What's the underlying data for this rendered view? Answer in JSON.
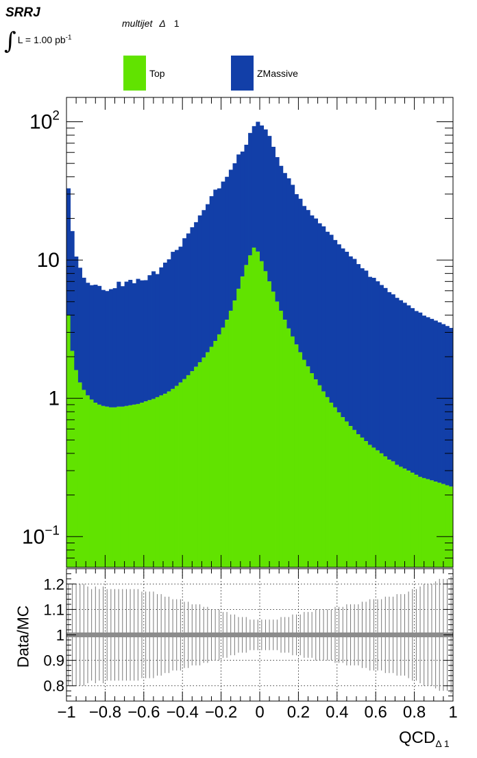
{
  "labels": {
    "analysis": "SRRJ",
    "lumi_text": "L = 1.00 pb",
    "lumi_exp": "-1",
    "region_text": "multijet",
    "region_symbol": "Δ",
    "region_number": "1"
  },
  "legend": [
    {
      "label": "Top",
      "color": "#61e300"
    },
    {
      "label": "ZMassive",
      "color": "#123fa8"
    }
  ],
  "chart_data": [
    {
      "type": "area",
      "subtype": "stacked-histogram",
      "yscale": "log",
      "xlim": [
        -1,
        1
      ],
      "ylim": [
        0.06,
        150
      ],
      "nbins": 100,
      "ytick_labels": [
        "10^-1",
        "1",
        "10",
        "10^2"
      ],
      "series": [
        {
          "name": "Top",
          "color": "#61e300",
          "values": [
            4.0,
            2.2,
            1.6,
            1.3,
            1.15,
            1.05,
            0.98,
            0.93,
            0.9,
            0.88,
            0.87,
            0.86,
            0.86,
            0.87,
            0.87,
            0.88,
            0.89,
            0.9,
            0.91,
            0.93,
            0.95,
            0.97,
            0.99,
            1.02,
            1.05,
            1.08,
            1.12,
            1.17,
            1.23,
            1.3,
            1.38,
            1.47,
            1.57,
            1.69,
            1.82,
            1.97,
            2.15,
            2.36,
            2.6,
            2.9,
            3.25,
            3.7,
            4.3,
            5.1,
            6.2,
            7.6,
            9.2,
            10.8,
            12.3,
            11.5,
            9.8,
            8.3,
            7.0,
            5.9,
            5.0,
            4.3,
            3.7,
            3.2,
            2.8,
            2.45,
            2.15,
            1.9,
            1.7,
            1.52,
            1.37,
            1.24,
            1.12,
            1.02,
            0.93,
            0.86,
            0.79,
            0.73,
            0.68,
            0.63,
            0.59,
            0.55,
            0.52,
            0.49,
            0.46,
            0.44,
            0.42,
            0.4,
            0.38,
            0.36,
            0.35,
            0.33,
            0.32,
            0.31,
            0.3,
            0.29,
            0.28,
            0.27,
            0.265,
            0.26,
            0.255,
            0.25,
            0.245,
            0.24,
            0.235,
            0.23
          ]
        },
        {
          "name": "ZMassive",
          "color": "#123fa8",
          "values": [
            29.0,
            14.0,
            9.0,
            7.5,
            6.3,
            5.8,
            5.6,
            5.7,
            5.6,
            5.2,
            5.1,
            5.3,
            5.4,
            6.1,
            5.6,
            6.1,
            6.3,
            5.9,
            6.4,
            6.2,
            6.2,
            6.8,
            7.3,
            6.9,
            7.8,
            8.5,
            9.0,
            10.3,
            10.6,
            11.2,
            13.0,
            14.1,
            15.7,
            17.1,
            19.2,
            21.0,
            23.2,
            26.6,
            29.7,
            30.1,
            33.7,
            36.3,
            40.7,
            45.0,
            51.8,
            53.3,
            59.0,
            72.2,
            80.7,
            88.5,
            84.2,
            79.7,
            72.0,
            60.0,
            50.5,
            43.7,
            38.9,
            35.8,
            32.2,
            27.5,
            25.6,
            22.7,
            21.3,
            19.5,
            18.6,
            17.2,
            16.4,
            15.0,
            14.3,
            13.1,
            12.2,
            11.4,
            10.8,
            10.0,
            9.6,
            8.8,
            8.2,
            7.9,
            7.1,
            7.0,
            6.6,
            6.2,
            5.9,
            5.5,
            5.3,
            5.0,
            4.8,
            4.6,
            4.4,
            4.2,
            4.0,
            3.9,
            3.7,
            3.6,
            3.5,
            3.4,
            3.3,
            3.2,
            3.1,
            3.0
          ]
        }
      ]
    },
    {
      "type": "scatter",
      "subtype": "ratio-error-bars",
      "ylabel": "Data/MC",
      "xlabel": "QCD",
      "xlabel_sub": "Δ 1",
      "xlim": [
        -1,
        1
      ],
      "ylim": [
        0.74,
        1.26
      ],
      "grid": true,
      "reference_value": 1.0,
      "x_ticks": [
        -1,
        -0.8,
        -0.6,
        -0.4,
        -0.2,
        0,
        0.2,
        0.4,
        0.6,
        0.8,
        1
      ],
      "x_tick_labels": [
        "−1",
        "−0.8",
        "−0.6",
        "−0.4",
        "−0.2",
        "0",
        "0.2",
        "0.4",
        "0.6",
        "0.8",
        "1"
      ],
      "y_ticks": [
        0.8,
        0.9,
        1.0,
        1.1,
        1.2
      ],
      "y_tick_labels": [
        "0.8",
        "0.9",
        "1",
        "1.1",
        "1.2"
      ],
      "error_half_width": [
        0.2,
        0.2,
        0.2,
        0.2,
        0.2,
        0.19,
        0.18,
        0.19,
        0.18,
        0.19,
        0.18,
        0.18,
        0.18,
        0.18,
        0.18,
        0.18,
        0.18,
        0.18,
        0.18,
        0.17,
        0.17,
        0.17,
        0.17,
        0.16,
        0.16,
        0.15,
        0.15,
        0.14,
        0.14,
        0.14,
        0.13,
        0.13,
        0.12,
        0.12,
        0.12,
        0.11,
        0.11,
        0.1,
        0.1,
        0.1,
        0.09,
        0.09,
        0.08,
        0.08,
        0.07,
        0.07,
        0.07,
        0.06,
        0.06,
        0.06,
        0.06,
        0.06,
        0.06,
        0.06,
        0.06,
        0.07,
        0.07,
        0.07,
        0.08,
        0.08,
        0.08,
        0.09,
        0.09,
        0.09,
        0.1,
        0.1,
        0.1,
        0.1,
        0.1,
        0.11,
        0.11,
        0.11,
        0.12,
        0.12,
        0.12,
        0.12,
        0.13,
        0.13,
        0.14,
        0.14,
        0.14,
        0.14,
        0.15,
        0.15,
        0.15,
        0.16,
        0.16,
        0.16,
        0.17,
        0.18,
        0.18,
        0.19,
        0.2,
        0.2,
        0.2,
        0.21,
        0.22,
        0.22,
        0.22,
        0.23
      ]
    }
  ]
}
